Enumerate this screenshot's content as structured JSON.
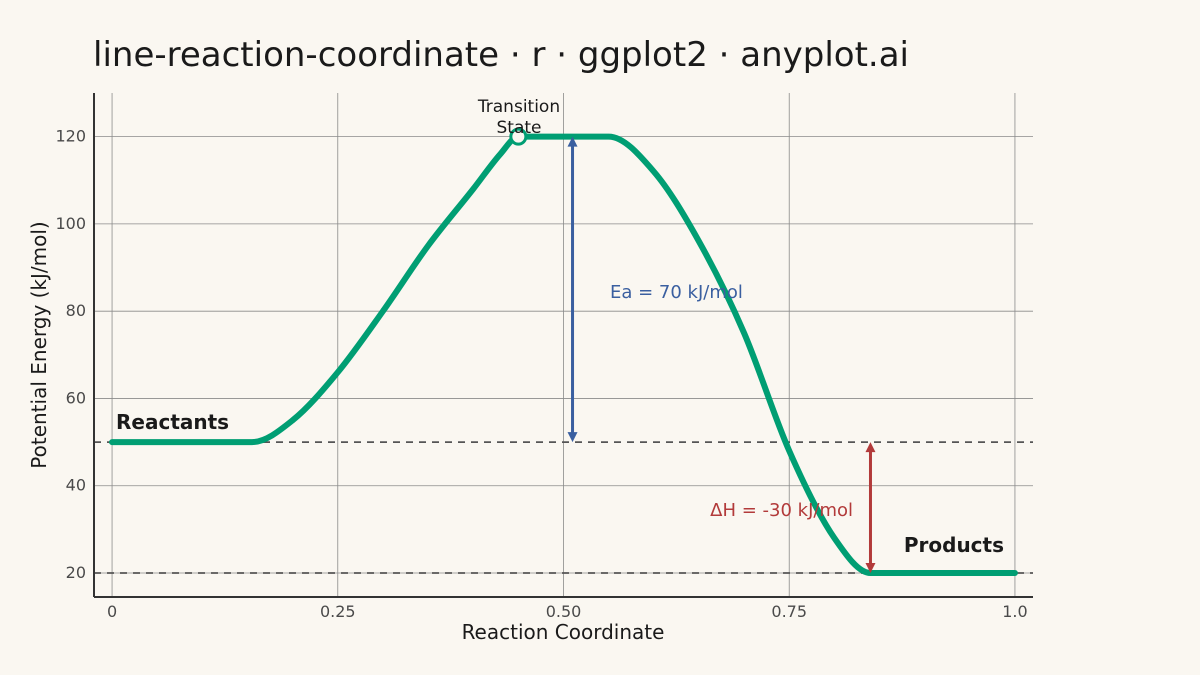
{
  "chart_data": {
    "type": "line",
    "title": "line-reaction-coordinate · r · ggplot2 · anyplot.ai",
    "xlabel": "Reaction Coordinate",
    "ylabel": "Potential Energy (kJ/mol)",
    "xlim": [
      -0.02,
      1.02
    ],
    "ylim": [
      14.5,
      130
    ],
    "x_ticks": [
      0,
      0.25,
      0.5,
      0.75,
      1.0
    ],
    "x_tick_labels": [
      "0",
      "0.25",
      "0.50",
      "0.75",
      "1.0"
    ],
    "y_ticks": [
      20,
      40,
      60,
      80,
      100,
      120
    ],
    "y_tick_labels": [
      "20",
      "40",
      "60",
      "80",
      "100",
      "120"
    ],
    "grid": true,
    "series": [
      {
        "color": "#009E73",
        "points": [
          [
            0.0,
            50
          ],
          [
            0.155,
            50
          ],
          [
            0.2,
            55
          ],
          [
            0.25,
            66
          ],
          [
            0.3,
            80
          ],
          [
            0.35,
            95
          ],
          [
            0.4,
            108
          ],
          [
            0.43,
            116
          ],
          [
            0.45,
            120
          ],
          [
            0.55,
            120
          ],
          [
            0.6,
            112
          ],
          [
            0.65,
            96
          ],
          [
            0.7,
            75
          ],
          [
            0.75,
            48
          ],
          [
            0.8,
            28
          ],
          [
            0.84,
            20
          ],
          [
            1.0,
            20
          ]
        ]
      }
    ],
    "reference_lines": [
      {
        "y": 50,
        "style": "dashed"
      },
      {
        "y": 20,
        "style": "dashed"
      }
    ],
    "transition_state": {
      "x": 0.45,
      "y": 120,
      "label_line1": "Transition",
      "label_line2": "State"
    },
    "activation_energy": {
      "x": 0.51,
      "y_from": 50,
      "y_to": 120,
      "label": "Ea = 70 kJ/mol",
      "color": "#3A5FA0"
    },
    "enthalpy_change": {
      "x": 0.84,
      "y_from": 50,
      "y_to": 20,
      "label": "ΔH = -30 kJ/mol",
      "color": "#B23A3A"
    },
    "reactants_label": "Reactants",
    "products_label": "Products"
  }
}
